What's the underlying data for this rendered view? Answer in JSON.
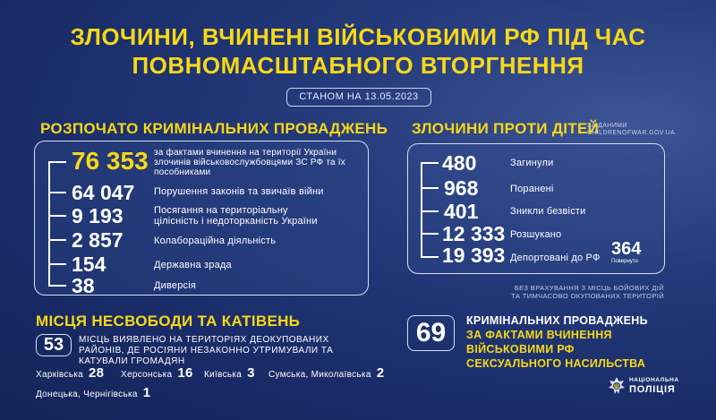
{
  "title": {
    "line1": "ЗЛОЧИНИ, ВЧИНЕНІ ВІЙСЬКОВИМИ РФ ПІД ЧАС",
    "line2": "ПОВНОМАСШТАБНОГО ВТОРГНЕННЯ"
  },
  "date_label": "СТАНОМ НА 13.05.2023",
  "criminal": {
    "heading": "РОЗПОЧАТО КРИМІНАЛЬНИХ ПРОВАДЖЕНЬ",
    "rows": [
      {
        "value": "76 353",
        "label": "за фактами вчинення на території України злочинів військовослужбовцями ЗС РФ та їх пособниками"
      },
      {
        "value": "64 047",
        "label": "Порушення законів та звичаїв війни"
      },
      {
        "value": "9 193",
        "label": "Посягання на територіальну цілісність і недоторканість України"
      },
      {
        "value": "2 857",
        "label": "Колабораційна діяльність"
      },
      {
        "value": "154",
        "label": "Державна зрада"
      },
      {
        "value": "38",
        "label": "Диверсія"
      }
    ]
  },
  "children": {
    "heading": "ЗЛОЧИНИ ПРОТИ ДІТЕЙ",
    "source": "ЗА ДАНИМИ CHILDRENOFWAR.GOV.UA",
    "rows": [
      {
        "value": "480",
        "label": "Загинули"
      },
      {
        "value": "968",
        "label": "Поранені"
      },
      {
        "value": "401",
        "label": "Зникли безвісти"
      },
      {
        "value": "12 333",
        "label": "Розшукано"
      },
      {
        "value": "19 393",
        "label": "Депортовані до РФ"
      }
    ],
    "returned": {
      "value": "364",
      "label": "Повернуто"
    },
    "footnote": "Без врахування з місць бойових дій та тимчасово окупованих територій"
  },
  "torture": {
    "heading": "МІСЦЯ НЕСВОБОДИ ТА КАТІВЕНЬ",
    "count": "53",
    "text": "місць виявлено на територіях деокупованих районів, де росіяни незаконно утримували та катували громадян",
    "regions": [
      {
        "name": "Харківська",
        "value": "28"
      },
      {
        "name": "Херсонська",
        "value": "16"
      },
      {
        "name": "Київська",
        "value": "3"
      },
      {
        "name": "Сумська, Миколаївська",
        "value": "2"
      },
      {
        "name": "Донецька, Чернігівська",
        "value": "1"
      }
    ]
  },
  "sexual": {
    "count": "69",
    "line1": "КРИМІНАЛЬНИХ ПРОВАДЖЕНЬ",
    "line2": "ЗА ФАКТАМИ ВЧИНЕННЯ",
    "line3": "ВІЙСЬКОВИМИ РФ",
    "line4": "СЕКСУАЛЬНОГО НАСИЛЬСТВА"
  },
  "logo": {
    "line1": "НАЦІОНАЛЬНА",
    "line2": "ПОЛІЦІЯ",
    "icon": "police-star-icon"
  },
  "colors": {
    "accent": "#f7d817",
    "background": "#1a2d68"
  }
}
